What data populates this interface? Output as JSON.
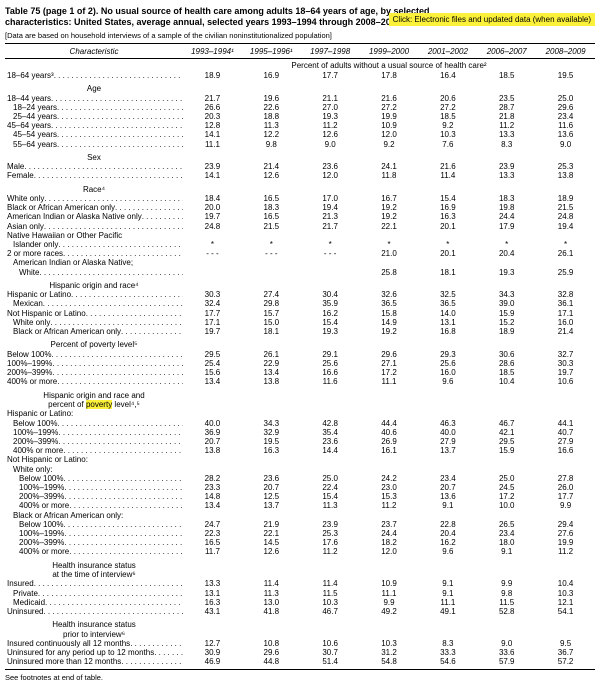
{
  "page": {
    "title_line1": "Table 75 (page 1 of 2). No usual source of health care among adults 18–64 years of age, by selected",
    "title_line2": "characteristics: United States, average annual, selected years 1993–1994 through 2008–2009",
    "note": "[Data are based on household interviews of a sample of the civilian noninstitutionalized population]",
    "link_label": "Click: Electronic files and updated data (when available)",
    "footer": "See footnotes at end of table.",
    "highlight_color": "#fbf13a"
  },
  "table": {
    "stub_header": "Characteristic",
    "year_headers": [
      "1993–1994¹",
      "1995–1996¹",
      "1997–1998",
      "1999–2000",
      "2001–2002",
      "2006–2007",
      "2008–2009"
    ],
    "spanner": "Percent of adults without a usual source of health care²",
    "sections": [
      {
        "rows": [
          {
            "l": "18–64 years³",
            "i": 0,
            "v": [
              "18.9",
              "16.9",
              "17.7",
              "17.8",
              "16.4",
              "18.5",
              "19.5"
            ]
          }
        ]
      },
      {
        "header": [
          "Age"
        ],
        "rows": [
          {
            "l": "18–44 years",
            "i": 0,
            "v": [
              "21.7",
              "19.6",
              "21.1",
              "21.6",
              "20.6",
              "23.5",
              "25.0"
            ]
          },
          {
            "l": "18–24 years",
            "i": 1,
            "v": [
              "26.6",
              "22.6",
              "27.0",
              "27.2",
              "27.2",
              "28.7",
              "29.6"
            ]
          },
          {
            "l": "25–44 years",
            "i": 1,
            "v": [
              "20.3",
              "18.8",
              "19.3",
              "19.9",
              "18.5",
              "21.8",
              "23.4"
            ]
          },
          {
            "l": "45–64 years",
            "i": 0,
            "v": [
              "12.8",
              "11.3",
              "11.2",
              "10.9",
              "9.2",
              "11.2",
              "11.6"
            ]
          },
          {
            "l": "45–54 years",
            "i": 1,
            "v": [
              "14.1",
              "12.2",
              "12.6",
              "12.0",
              "10.3",
              "13.3",
              "13.6"
            ]
          },
          {
            "l": "55–64 years",
            "i": 1,
            "v": [
              "11.1",
              "9.8",
              "9.0",
              "9.2",
              "7.6",
              "8.3",
              "9.0"
            ]
          }
        ]
      },
      {
        "header": [
          "Sex"
        ],
        "rows": [
          {
            "l": "Male",
            "i": 0,
            "v": [
              "23.9",
              "21.4",
              "23.6",
              "24.1",
              "21.6",
              "23.9",
              "25.3"
            ]
          },
          {
            "l": "Female",
            "i": 0,
            "v": [
              "14.1",
              "12.6",
              "12.0",
              "11.8",
              "11.4",
              "13.3",
              "13.8"
            ]
          }
        ]
      },
      {
        "header": [
          "Race⁴"
        ],
        "rows": [
          {
            "l": "White only",
            "i": 0,
            "v": [
              "18.4",
              "16.5",
              "17.0",
              "16.7",
              "15.4",
              "18.3",
              "18.9"
            ]
          },
          {
            "l": "Black or African American only",
            "i": 0,
            "v": [
              "20.0",
              "18.3",
              "19.4",
              "19.2",
              "16.9",
              "19.8",
              "21.5"
            ]
          },
          {
            "l": "American Indian or Alaska Native only",
            "i": 0,
            "v": [
              "19.7",
              "16.5",
              "21.3",
              "19.2",
              "16.3",
              "24.4",
              "24.8"
            ]
          },
          {
            "l": "Asian only",
            "i": 0,
            "v": [
              "24.8",
              "21.5",
              "21.7",
              "22.1",
              "20.1",
              "17.9",
              "19.4"
            ]
          },
          {
            "l": "Native Hawaiian or Other Pacific",
            "l2": "Islander only",
            "i": 0,
            "i2": 1,
            "v": [
              "*",
              "*",
              "*",
              "*",
              "*",
              "*",
              "*"
            ]
          },
          {
            "l": "2 or more races",
            "i": 0,
            "v": [
              "- - -",
              "- - -",
              "- - -",
              "21.0",
              "20.1",
              "20.4",
              "26.1"
            ]
          },
          {
            "l": "American Indian or Alaska Native;",
            "l2": "White",
            "i": 1,
            "i2": 2,
            "v": [
              "",
              "",
              "",
              "25.8",
              "18.1",
              "19.3",
              "25.9"
            ]
          }
        ]
      },
      {
        "header": [
          "Hispanic origin and race⁴"
        ],
        "rows": [
          {
            "l": "Hispanic or Latino",
            "i": 0,
            "v": [
              "30.3",
              "27.4",
              "30.4",
              "32.6",
              "32.5",
              "34.3",
              "32.8"
            ]
          },
          {
            "l": "Mexican",
            "i": 1,
            "v": [
              "32.4",
              "29.8",
              "35.9",
              "36.5",
              "36.5",
              "39.0",
              "36.1"
            ]
          },
          {
            "l": "Not Hispanic or Latino",
            "i": 0,
            "v": [
              "17.7",
              "15.7",
              "16.2",
              "15.8",
              "14.0",
              "15.9",
              "17.1"
            ]
          },
          {
            "l": "White only",
            "i": 1,
            "v": [
              "17.1",
              "15.0",
              "15.4",
              "14.9",
              "13.1",
              "15.2",
              "16.0"
            ]
          },
          {
            "l": "Black or African American only",
            "i": 1,
            "v": [
              "19.7",
              "18.1",
              "19.3",
              "19.2",
              "16.8",
              "18.9",
              "21.4"
            ]
          }
        ]
      },
      {
        "header": [
          "Percent of poverty level⁵"
        ],
        "rows": [
          {
            "l": "Below 100%",
            "i": 0,
            "v": [
              "29.5",
              "26.1",
              "29.1",
              "29.6",
              "29.3",
              "30.6",
              "32.7"
            ]
          },
          {
            "l": "100%–199%",
            "i": 0,
            "v": [
              "25.4",
              "22.9",
              "25.6",
              "27.1",
              "25.6",
              "28.6",
              "30.3"
            ]
          },
          {
            "l": "200%–399%",
            "i": 0,
            "v": [
              "15.6",
              "13.4",
              "16.6",
              "17.2",
              "16.0",
              "18.5",
              "19.7"
            ]
          },
          {
            "l": "400% or more",
            "i": 0,
            "v": [
              "13.4",
              "13.8",
              "11.6",
              "11.1",
              "9.6",
              "10.4",
              "10.6"
            ]
          }
        ]
      },
      {
        "header": [
          "Hispanic origin and race and",
          "percent of ||poverty|| level⁴,⁵"
        ],
        "rows": [
          {
            "l": "Hispanic or Latino:",
            "i": 0,
            "v": []
          },
          {
            "l": "Below 100%",
            "i": 1,
            "v": [
              "40.0",
              "34.3",
              "42.8",
              "44.4",
              "46.3",
              "46.7",
              "44.1"
            ]
          },
          {
            "l": "100%–199%",
            "i": 1,
            "v": [
              "36.9",
              "32.9",
              "35.4",
              "40.6",
              "40.0",
              "42.1",
              "40.7"
            ]
          },
          {
            "l": "200%–399%",
            "i": 1,
            "v": [
              "20.7",
              "19.5",
              "23.6",
              "26.9",
              "27.9",
              "29.5",
              "27.9"
            ]
          },
          {
            "l": "400% or more",
            "i": 1,
            "v": [
              "13.8",
              "16.3",
              "14.4",
              "16.1",
              "13.7",
              "15.9",
              "16.6"
            ]
          },
          {
            "l": "Not Hispanic or Latino:",
            "i": 0,
            "v": []
          },
          {
            "l": "White only:",
            "i": 1,
            "v": []
          },
          {
            "l": "Below 100%",
            "i": 2,
            "v": [
              "28.2",
              "23.6",
              "25.0",
              "24.2",
              "23.4",
              "25.0",
              "27.8"
            ]
          },
          {
            "l": "100%–199%",
            "i": 2,
            "v": [
              "23.3",
              "20.7",
              "22.4",
              "23.0",
              "20.7",
              "24.5",
              "26.0"
            ]
          },
          {
            "l": "200%–399%",
            "i": 2,
            "v": [
              "14.8",
              "12.5",
              "15.4",
              "15.3",
              "13.6",
              "17.2",
              "17.7"
            ]
          },
          {
            "l": "400% or more",
            "i": 2,
            "v": [
              "13.4",
              "13.7",
              "11.3",
              "11.2",
              "9.1",
              "10.0",
              "9.9"
            ]
          },
          {
            "l": "Black or African American only:",
            "i": 1,
            "v": []
          },
          {
            "l": "Below 100%",
            "i": 2,
            "v": [
              "24.7",
              "21.9",
              "23.9",
              "23.7",
              "22.8",
              "26.5",
              "29.4"
            ]
          },
          {
            "l": "100%–199%",
            "i": 2,
            "v": [
              "22.3",
              "22.1",
              "25.3",
              "24.4",
              "20.4",
              "23.4",
              "27.6"
            ]
          },
          {
            "l": "200%–399%",
            "i": 2,
            "v": [
              "16.5",
              "14.5",
              "17.6",
              "18.2",
              "16.2",
              "18.0",
              "19.9"
            ]
          },
          {
            "l": "400% or more",
            "i": 2,
            "v": [
              "11.7",
              "12.6",
              "11.2",
              "12.0",
              "9.6",
              "9.1",
              "11.2"
            ]
          }
        ]
      },
      {
        "header": [
          "Health insurance status",
          "at the time of interview⁶"
        ],
        "rows": [
          {
            "l": "Insured",
            "i": 0,
            "v": [
              "13.3",
              "11.4",
              "11.4",
              "10.9",
              "9.1",
              "9.9",
              "10.4"
            ]
          },
          {
            "l": "Private",
            "i": 1,
            "v": [
              "13.1",
              "11.3",
              "11.5",
              "11.1",
              "9.1",
              "9.8",
              "10.3"
            ]
          },
          {
            "l": "Medicaid",
            "i": 1,
            "v": [
              "16.3",
              "13.0",
              "10.3",
              "9.9",
              "11.1",
              "11.5",
              "12.1"
            ]
          },
          {
            "l": "Uninsured",
            "i": 0,
            "v": [
              "43.1",
              "41.8",
              "46.7",
              "49.2",
              "49.1",
              "52.8",
              "54.1"
            ]
          }
        ]
      },
      {
        "header": [
          "Health insurance status",
          "prior to interview⁶"
        ],
        "rows": [
          {
            "l": "Insured continuously all 12 months",
            "i": 0,
            "v": [
              "12.7",
              "10.8",
              "10.6",
              "10.3",
              "8.3",
              "9.0",
              "9.5"
            ]
          },
          {
            "l": "Uninsured for any period up to 12 months",
            "i": 0,
            "v": [
              "30.9",
              "29.6",
              "30.7",
              "31.2",
              "33.3",
              "33.6",
              "36.7"
            ]
          },
          {
            "l": "Uninsured more than 12 months",
            "i": 0,
            "v": [
              "46.9",
              "44.8",
              "51.4",
              "54.8",
              "54.6",
              "57.9",
              "57.2"
            ]
          }
        ]
      }
    ]
  }
}
